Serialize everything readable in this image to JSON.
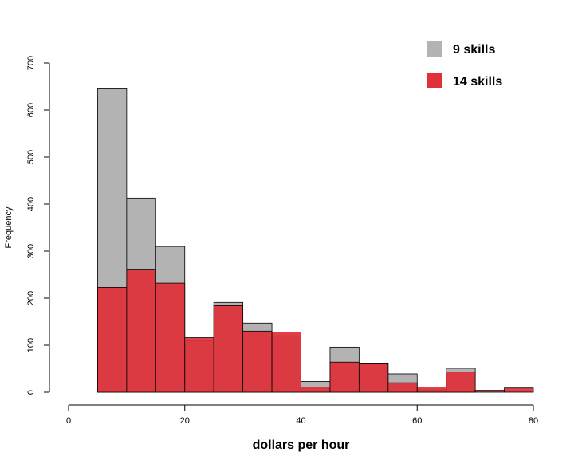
{
  "chart_data": {
    "type": "bar",
    "subtype": "overlaid-histogram",
    "title": "",
    "xlabel": "dollars per hour",
    "ylabel": "Frequency",
    "xlim": [
      0,
      80
    ],
    "ylim": [
      0,
      700
    ],
    "x_ticks": [
      0,
      20,
      40,
      60,
      80
    ],
    "y_ticks": [
      0,
      100,
      200,
      300,
      400,
      500,
      600,
      700
    ],
    "bin_width": 5,
    "grid": false,
    "legend_position": "top-right",
    "series": [
      {
        "name": "9 skills",
        "color": "#b3b3b3",
        "bins": [
          {
            "x0": 5,
            "x1": 10,
            "value": 645
          },
          {
            "x0": 10,
            "x1": 15,
            "value": 413
          },
          {
            "x0": 15,
            "x1": 20,
            "value": 310
          },
          {
            "x0": 20,
            "x1": 25,
            "value": 110
          },
          {
            "x0": 25,
            "x1": 30,
            "value": 191
          },
          {
            "x0": 30,
            "x1": 35,
            "value": 147
          },
          {
            "x0": 35,
            "x1": 40,
            "value": 120
          },
          {
            "x0": 40,
            "x1": 45,
            "value": 23
          },
          {
            "x0": 45,
            "x1": 50,
            "value": 96
          },
          {
            "x0": 50,
            "x1": 55,
            "value": 62
          },
          {
            "x0": 55,
            "x1": 60,
            "value": 39
          },
          {
            "x0": 60,
            "x1": 65,
            "value": 5
          },
          {
            "x0": 65,
            "x1": 70,
            "value": 51
          }
        ]
      },
      {
        "name": "14 skills",
        "color": "#e0303a",
        "bins": [
          {
            "x0": 5,
            "x1": 10,
            "value": 223
          },
          {
            "x0": 10,
            "x1": 15,
            "value": 260
          },
          {
            "x0": 15,
            "x1": 20,
            "value": 232
          },
          {
            "x0": 20,
            "x1": 25,
            "value": 116
          },
          {
            "x0": 25,
            "x1": 30,
            "value": 184
          },
          {
            "x0": 30,
            "x1": 35,
            "value": 130
          },
          {
            "x0": 35,
            "x1": 40,
            "value": 128
          },
          {
            "x0": 40,
            "x1": 45,
            "value": 11
          },
          {
            "x0": 45,
            "x1": 50,
            "value": 64
          },
          {
            "x0": 50,
            "x1": 55,
            "value": 62
          },
          {
            "x0": 55,
            "x1": 60,
            "value": 20
          },
          {
            "x0": 60,
            "x1": 65,
            "value": 11
          },
          {
            "x0": 65,
            "x1": 70,
            "value": 43
          },
          {
            "x0": 70,
            "x1": 75,
            "value": 4
          },
          {
            "x0": 75,
            "x1": 80,
            "value": 9
          }
        ]
      }
    ]
  }
}
